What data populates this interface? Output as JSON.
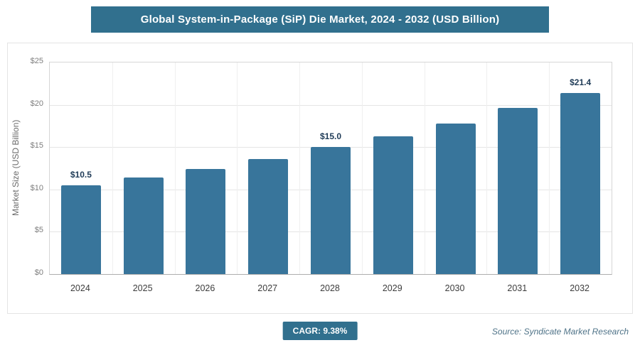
{
  "header": {
    "title": "Global System-in-Package (SiP) Die Market, 2024 - 2032 (USD Billion)"
  },
  "chart_data": {
    "type": "bar",
    "title": "Global System-in-Package (SiP) Die Market, 2024 - 2032 (USD Billion)",
    "categories": [
      "2024",
      "2025",
      "2026",
      "2027",
      "2028",
      "2029",
      "2030",
      "2031",
      "2032"
    ],
    "values": [
      10.5,
      11.4,
      12.4,
      13.6,
      15.0,
      16.3,
      17.8,
      19.6,
      21.4
    ],
    "data_labels": {
      "0": "$10.5",
      "4": "$15.0",
      "8": "$21.4"
    },
    "xlabel": "",
    "ylabel": "Market Size (USD Billion)",
    "ylim": [
      0,
      25
    ],
    "yticks": [
      {
        "value": 0,
        "label": "$0"
      },
      {
        "value": 5,
        "label": "$5"
      },
      {
        "value": 10,
        "label": "$10"
      },
      {
        "value": 15,
        "label": "$15"
      },
      {
        "value": 20,
        "label": "$20"
      },
      {
        "value": 25,
        "label": "$25"
      }
    ],
    "grid": true,
    "legend": false
  },
  "footer": {
    "cagr_label": "CAGR: 9.38%",
    "source": "Source: Syndicate Market Research"
  },
  "colors": {
    "banner_bg": "#31708E",
    "badge_bg": "#31708E",
    "bar": "#38759B",
    "data_label": "#1F3B57",
    "source_text": "#4F7388"
  }
}
